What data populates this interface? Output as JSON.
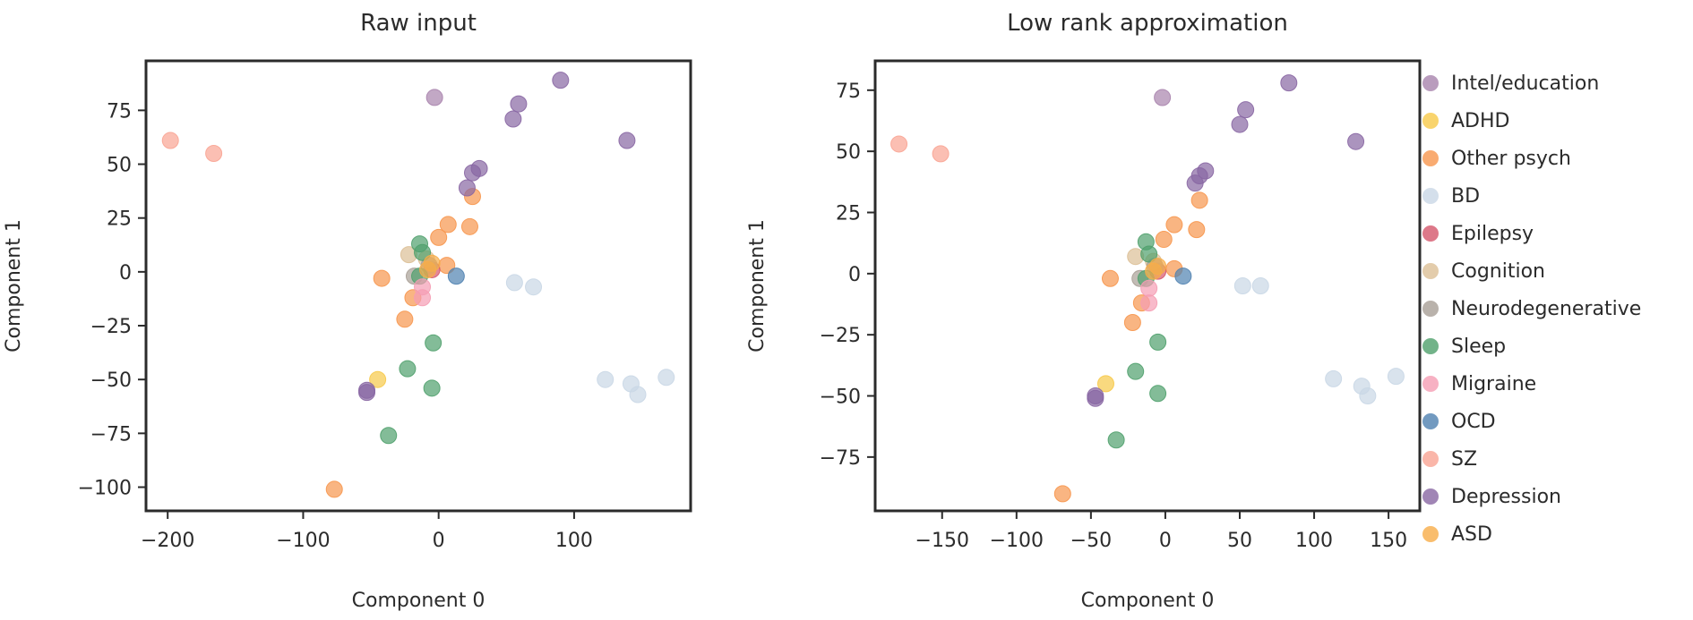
{
  "legend": [
    {
      "name": "Intel/education",
      "color": "#a883ad"
    },
    {
      "name": "ADHD",
      "color": "#f7c948"
    },
    {
      "name": "Other psych",
      "color": "#f7964d"
    },
    {
      "name": "BD",
      "color": "#c9d7e6"
    },
    {
      "name": "Epilepsy",
      "color": "#d5566b"
    },
    {
      "name": "Cognition",
      "color": "#dcbf96"
    },
    {
      "name": "Neurodegenerative",
      "color": "#a89f96"
    },
    {
      "name": "Sleep",
      "color": "#4fa06c"
    },
    {
      "name": "Migraine",
      "color": "#f59db4"
    },
    {
      "name": "OCD",
      "color": "#4f81b0"
    },
    {
      "name": "SZ",
      "color": "#f9a493"
    },
    {
      "name": "Depression",
      "color": "#8866a3"
    },
    {
      "name": "ASD",
      "color": "#f7ad48"
    }
  ],
  "chart_data": [
    {
      "type": "scatter",
      "title": "Raw input",
      "xlabel": "Component 0",
      "ylabel": "Component 1",
      "xlim": [
        -216,
        186
      ],
      "ylim": [
        -111,
        98
      ],
      "xticks": [
        -200,
        -100,
        0,
        100
      ],
      "yticks": [
        -100,
        -75,
        -50,
        -25,
        0,
        25,
        50,
        75
      ],
      "series": [
        {
          "name": "Intel/education",
          "points": [
            [
              -3,
              81
            ]
          ]
        },
        {
          "name": "ADHD",
          "points": [
            [
              -45,
              -50
            ]
          ]
        },
        {
          "name": "Other psych",
          "points": [
            [
              -77,
              -101
            ],
            [
              -42,
              -3
            ],
            [
              -25,
              -22
            ],
            [
              -19,
              -12
            ],
            [
              0,
              16
            ],
            [
              7,
              22
            ],
            [
              25,
              35
            ],
            [
              23,
              21
            ],
            [
              6,
              3
            ]
          ]
        },
        {
          "name": "BD",
          "points": [
            [
              56,
              -5
            ],
            [
              70,
              -7
            ],
            [
              123,
              -50
            ],
            [
              142,
              -52
            ],
            [
              147,
              -57
            ],
            [
              168,
              -49
            ]
          ]
        },
        {
          "name": "Epilepsy",
          "points": [
            [
              -5,
              1
            ]
          ]
        },
        {
          "name": "Cognition",
          "points": [
            [
              -22,
              8
            ],
            [
              -9,
              6
            ]
          ]
        },
        {
          "name": "Neurodegenerative",
          "points": [
            [
              -18,
              -2
            ],
            [
              -7,
              3
            ]
          ]
        },
        {
          "name": "Sleep",
          "points": [
            [
              -14,
              13
            ],
            [
              -12,
              9
            ],
            [
              -14,
              -2
            ],
            [
              -4,
              -33
            ],
            [
              -23,
              -45
            ],
            [
              -5,
              -54
            ],
            [
              -37,
              -76
            ]
          ]
        },
        {
          "name": "Migraine",
          "points": [
            [
              -12,
              -7
            ],
            [
              -12,
              -12
            ]
          ]
        },
        {
          "name": "OCD",
          "points": [
            [
              13,
              -2
            ]
          ]
        },
        {
          "name": "SZ",
          "points": [
            [
              -198,
              61
            ],
            [
              -166,
              55
            ]
          ]
        },
        {
          "name": "Depression",
          "points": [
            [
              90,
              89
            ],
            [
              59,
              78
            ],
            [
              55,
              71
            ],
            [
              139,
              61
            ],
            [
              30,
              48
            ],
            [
              25,
              46
            ],
            [
              21,
              39
            ],
            [
              -53,
              -55
            ],
            [
              -53,
              -56
            ]
          ]
        },
        {
          "name": "ASD",
          "points": [
            [
              -5,
              4
            ],
            [
              -8,
              1
            ]
          ]
        }
      ]
    },
    {
      "type": "scatter",
      "title": "Low rank approximation",
      "xlabel": "Component 0",
      "ylabel": "Component 1",
      "xlim": [
        -195,
        171
      ],
      "ylim": [
        -97,
        87
      ],
      "xticks": [
        -150,
        -100,
        -50,
        0,
        50,
        100,
        150
      ],
      "yticks": [
        -75,
        -50,
        -25,
        0,
        25,
        50,
        75
      ],
      "series": [
        {
          "name": "Intel/education",
          "points": [
            [
              -2,
              72
            ]
          ]
        },
        {
          "name": "ADHD",
          "points": [
            [
              -40,
              -45
            ]
          ]
        },
        {
          "name": "Other psych",
          "points": [
            [
              -69,
              -90
            ],
            [
              -37,
              -2
            ],
            [
              -22,
              -20
            ],
            [
              -16,
              -12
            ],
            [
              -1,
              14
            ],
            [
              6,
              20
            ],
            [
              23,
              30
            ],
            [
              21,
              18
            ],
            [
              6,
              2
            ]
          ]
        },
        {
          "name": "BD",
          "points": [
            [
              52,
              -5
            ],
            [
              64,
              -5
            ],
            [
              113,
              -43
            ],
            [
              132,
              -46
            ],
            [
              136,
              -50
            ],
            [
              155,
              -42
            ]
          ]
        },
        {
          "name": "Epilepsy",
          "points": [
            [
              -5,
              1
            ]
          ]
        },
        {
          "name": "Cognition",
          "points": [
            [
              -20,
              7
            ],
            [
              -8,
              5
            ]
          ]
        },
        {
          "name": "Neurodegenerative",
          "points": [
            [
              -17,
              -2
            ],
            [
              -7,
              3
            ]
          ]
        },
        {
          "name": "Sleep",
          "points": [
            [
              -13,
              13
            ],
            [
              -11,
              8
            ],
            [
              -13,
              -2
            ],
            [
              -5,
              -28
            ],
            [
              -20,
              -40
            ],
            [
              -5,
              -49
            ],
            [
              -33,
              -68
            ]
          ]
        },
        {
          "name": "Migraine",
          "points": [
            [
              -11,
              -6
            ],
            [
              -11,
              -12
            ]
          ]
        },
        {
          "name": "OCD",
          "points": [
            [
              12,
              -1
            ]
          ]
        },
        {
          "name": "SZ",
          "points": [
            [
              -179,
              53
            ],
            [
              -151,
              49
            ]
          ]
        },
        {
          "name": "Depression",
          "points": [
            [
              83,
              78
            ],
            [
              54,
              67
            ],
            [
              50,
              61
            ],
            [
              128,
              54
            ],
            [
              27,
              42
            ],
            [
              23,
              40
            ],
            [
              20,
              37
            ],
            [
              -47,
              -50
            ],
            [
              -47,
              -51
            ]
          ]
        },
        {
          "name": "ASD",
          "points": [
            [
              -5,
              3
            ],
            [
              -8,
              1
            ]
          ]
        }
      ]
    }
  ]
}
